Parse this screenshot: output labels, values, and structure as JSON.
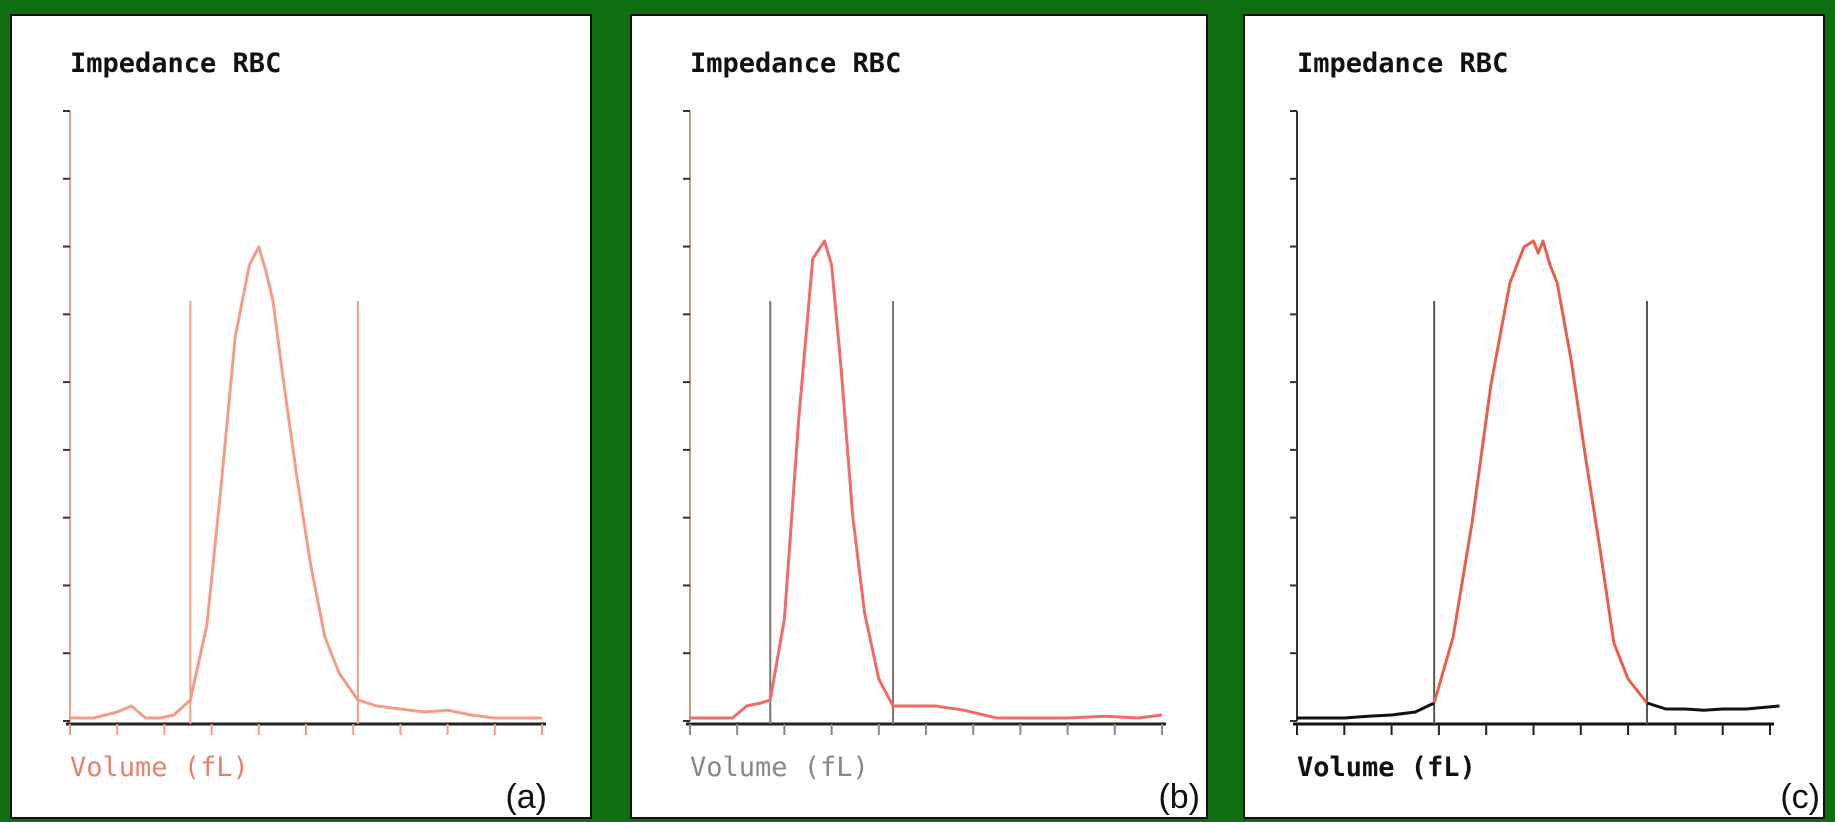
{
  "chart_data": [
    {
      "type": "line",
      "title": "Impedance RBC",
      "xlabel": "Volume (fL)",
      "ylabel": "",
      "panel_label": "(a)",
      "grid": false,
      "x_ticks": 11,
      "y_ticks": 10,
      "xlim": [
        0,
        10
      ],
      "ylim": [
        0,
        10
      ],
      "discriminators": [
        2.55,
        6.1
      ],
      "series": [
        {
          "name": "",
          "color": "#f39c8a",
          "x": [
            0,
            0.5,
            1.0,
            1.3,
            1.6,
            1.9,
            2.2,
            2.55,
            2.9,
            3.2,
            3.5,
            3.8,
            4.0,
            4.15,
            4.3,
            4.5,
            4.8,
            5.1,
            5.4,
            5.7,
            6.1,
            6.5,
            7.0,
            7.5,
            8.0,
            8.5,
            9.0,
            9.5,
            10.0
          ],
          "y": [
            0.05,
            0.05,
            0.15,
            0.25,
            0.05,
            0.05,
            0.1,
            0.35,
            1.6,
            3.9,
            6.4,
            7.6,
            7.9,
            7.5,
            7.0,
            5.8,
            4.1,
            2.6,
            1.4,
            0.8,
            0.35,
            0.25,
            0.2,
            0.15,
            0.18,
            0.1,
            0.05,
            0.05,
            0.05
          ]
        }
      ]
    },
    {
      "type": "line",
      "title": "Impedance RBC",
      "xlabel": "Volume (fL)",
      "ylabel": "",
      "panel_label": "(b)",
      "grid": false,
      "x_ticks": 11,
      "y_ticks": 10,
      "xlim": [
        0,
        10
      ],
      "ylim": [
        0,
        10
      ],
      "discriminators": [
        1.7,
        4.3
      ],
      "series": [
        {
          "name": "",
          "color": "#f26b6b",
          "x": [
            0,
            0.5,
            0.9,
            1.2,
            1.5,
            1.7,
            2.0,
            2.3,
            2.6,
            2.85,
            3.0,
            3.2,
            3.45,
            3.7,
            4.0,
            4.3,
            4.7,
            5.2,
            5.8,
            6.5,
            7.2,
            8.0,
            8.8,
            9.5,
            10.0
          ],
          "y": [
            0.05,
            0.05,
            0.05,
            0.25,
            0.3,
            0.35,
            1.7,
            5.0,
            7.7,
            8.0,
            7.6,
            5.9,
            3.4,
            1.8,
            0.7,
            0.25,
            0.25,
            0.25,
            0.18,
            0.05,
            0.05,
            0.05,
            0.08,
            0.05,
            0.1
          ]
        }
      ]
    },
    {
      "type": "line",
      "title": "Impedance RBC",
      "xlabel": "Volume (fL)",
      "ylabel": "",
      "panel_label": "(c)",
      "grid": false,
      "x_ticks": 11,
      "y_ticks": 10,
      "xlim": [
        0,
        10
      ],
      "ylim": [
        0,
        10
      ],
      "discriminators": [
        2.9,
        7.4
      ],
      "series": [
        {
          "name": "",
          "color": "#111111",
          "x": [
            0,
            0.5,
            1.0,
            1.5,
            2.0,
            2.5,
            2.9
          ],
          "y": [
            0.05,
            0.05,
            0.05,
            0.08,
            0.1,
            0.15,
            0.3
          ]
        },
        {
          "name": "",
          "color": "#e95f4e",
          "x": [
            2.9,
            3.3,
            3.7,
            4.1,
            4.5,
            4.8,
            5.0,
            5.1,
            5.2,
            5.35,
            5.5,
            5.8,
            6.1,
            6.4,
            6.7,
            7.0,
            7.4
          ],
          "y": [
            0.3,
            1.4,
            3.3,
            5.6,
            7.3,
            7.9,
            8.0,
            7.8,
            8.0,
            7.6,
            7.3,
            6.0,
            4.4,
            2.9,
            1.3,
            0.7,
            0.3
          ]
        },
        {
          "name": "",
          "color": "#111111",
          "x": [
            7.4,
            7.8,
            8.2,
            8.6,
            9.0,
            9.5,
            10.2
          ],
          "y": [
            0.3,
            0.2,
            0.2,
            0.18,
            0.2,
            0.2,
            0.25
          ]
        }
      ]
    }
  ]
}
